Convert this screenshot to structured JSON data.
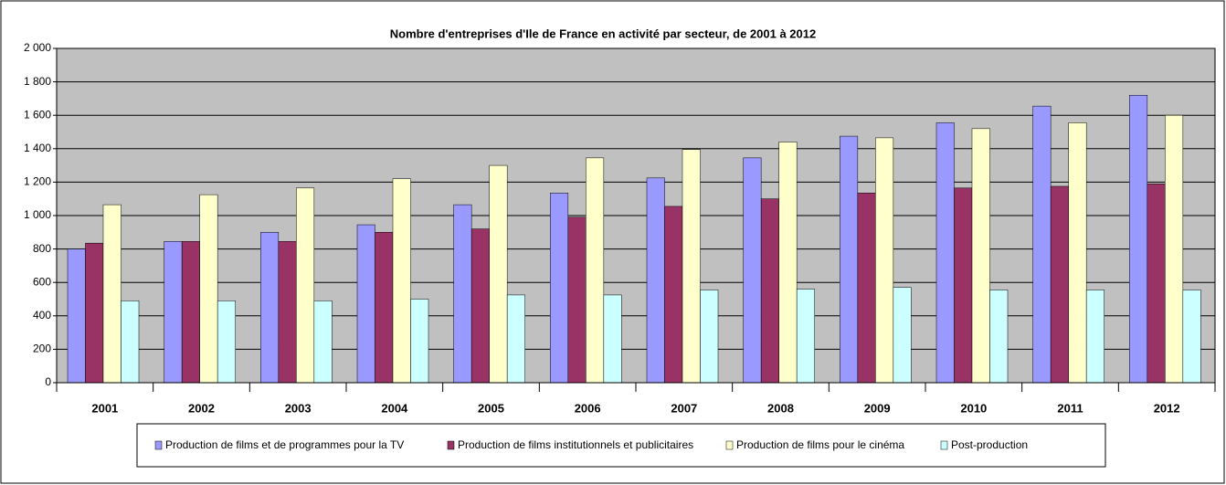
{
  "chart_data": {
    "type": "bar",
    "title": "Nombre d'entreprises d'Ile de France en activité par secteur, de 2001 à 2012",
    "categories": [
      "2001",
      "2002",
      "2003",
      "2004",
      "2005",
      "2006",
      "2007",
      "2008",
      "2009",
      "2010",
      "2011",
      "2012"
    ],
    "series": [
      {
        "name": "Production de films et de programmes pour la TV",
        "color": "#9999ff",
        "values": [
          800,
          845,
          900,
          945,
          1065,
          1135,
          1225,
          1345,
          1475,
          1555,
          1655,
          1720
        ]
      },
      {
        "name": "Production de films institutionnels et publicitaires",
        "color": "#993366",
        "values": [
          835,
          845,
          845,
          900,
          920,
          990,
          1055,
          1100,
          1135,
          1165,
          1175,
          1190
        ]
      },
      {
        "name": "Production de films pour le cinéma",
        "color": "#ffffcc",
        "values": [
          1065,
          1125,
          1165,
          1220,
          1300,
          1345,
          1395,
          1440,
          1465,
          1520,
          1555,
          1600
        ]
      },
      {
        "name": "Post-production",
        "color": "#ccffff",
        "values": [
          490,
          490,
          490,
          500,
          525,
          525,
          555,
          560,
          570,
          555,
          555,
          555
        ]
      }
    ],
    "ylim": [
      0,
      2000
    ],
    "yticks": [
      0,
      200,
      400,
      600,
      800,
      {
        "value": 1000,
        "label": "1 000"
      },
      {
        "value": 1200,
        "label": "1 200"
      },
      {
        "value": 1400,
        "label": "1 400"
      },
      {
        "value": 1600,
        "label": "1 600"
      },
      {
        "value": 1800,
        "label": "1 800"
      },
      {
        "value": 2000,
        "label": "2 000"
      }
    ],
    "grid": true,
    "plot_background": "#c0c0c0"
  }
}
